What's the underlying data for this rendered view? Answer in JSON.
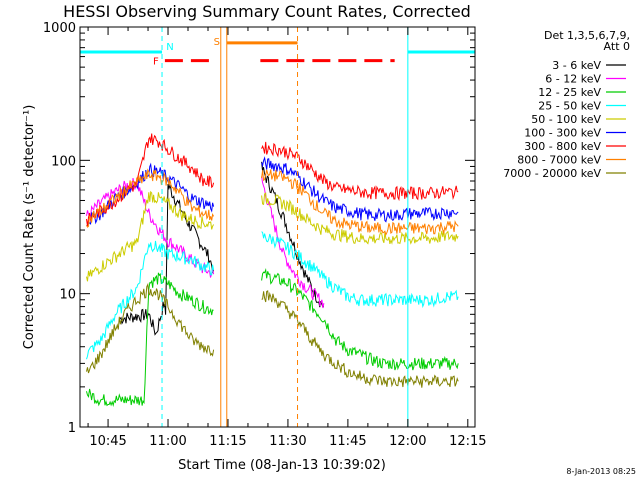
{
  "chart_data": {
    "type": "line",
    "title": "HESSI Observing Summary Count Rates, Corrected",
    "xlabel": "Start Time (08-Jan-13 10:39:02)",
    "ylabel": "Corrected Count Rate (s⁻¹ detector⁻¹)",
    "yscale": "log",
    "ylim": [
      1,
      1000
    ],
    "xlim_minutes": [
      10.633,
      12.28
    ],
    "xticks": [
      "10:45",
      "11:00",
      "11:15",
      "11:30",
      "11:45",
      "12:00",
      "12:15"
    ],
    "yticks": [
      "1",
      "10",
      "100",
      "1000"
    ],
    "legend_header": [
      "Det 1,3,5,6,7,9,",
      "Att 0"
    ],
    "legend_position": "right",
    "series": [
      {
        "name": "3 - 6 keV",
        "color": "#000000",
        "points": [
          [
            10.8,
            6.5
          ],
          [
            10.87,
            6.8
          ],
          [
            10.92,
            7.0
          ],
          [
            10.95,
            5.0
          ],
          [
            10.983,
            8.5
          ],
          [
            10.99,
            7.0
          ],
          [
            11.0,
            65
          ],
          [
            11.04,
            48
          ],
          [
            11.08,
            35
          ],
          [
            11.12,
            27
          ],
          [
            11.17,
            19
          ],
          [
            11.19,
            15
          ],
          [
            11.39,
            88
          ],
          [
            11.43,
            62
          ],
          [
            11.48,
            38
          ],
          [
            11.53,
            22
          ],
          [
            11.58,
            13
          ],
          [
            11.62,
            9.5
          ],
          [
            11.65,
            8.0
          ]
        ]
      },
      {
        "name": "6 - 12 keV",
        "color": "#ff00ff",
        "points": [
          [
            10.66,
            38
          ],
          [
            10.72,
            48
          ],
          [
            10.78,
            58
          ],
          [
            10.83,
            65
          ],
          [
            10.87,
            68
          ],
          [
            10.92,
            40
          ],
          [
            10.97,
            29
          ],
          [
            11.0,
            25
          ],
          [
            11.04,
            22
          ],
          [
            11.08,
            19
          ],
          [
            11.13,
            16
          ],
          [
            11.19,
            14
          ],
          [
            11.39,
            72
          ],
          [
            11.43,
            40
          ],
          [
            11.48,
            20
          ],
          [
            11.53,
            14
          ],
          [
            11.58,
            11
          ],
          [
            11.62,
            9.5
          ],
          [
            11.65,
            8.5
          ]
        ]
      },
      {
        "name": "12 - 25 keV",
        "color": "#00cc00",
        "points": [
          [
            10.66,
            1.8
          ],
          [
            10.72,
            1.6
          ],
          [
            10.78,
            1.6
          ],
          [
            10.83,
            1.6
          ],
          [
            10.9,
            1.6
          ],
          [
            10.92,
            12
          ],
          [
            10.96,
            13
          ],
          [
            11.0,
            12
          ],
          [
            11.05,
            10
          ],
          [
            11.1,
            9.0
          ],
          [
            11.15,
            8.0
          ],
          [
            11.19,
            7.5
          ],
          [
            11.39,
            14
          ],
          [
            11.45,
            13
          ],
          [
            11.5,
            12
          ],
          [
            11.55,
            10
          ],
          [
            11.6,
            8.0
          ],
          [
            11.65,
            6.5
          ],
          [
            11.7,
            4.5
          ],
          [
            11.75,
            3.8
          ],
          [
            11.8,
            3.5
          ],
          [
            11.85,
            3.2
          ],
          [
            11.9,
            3.0
          ],
          [
            11.95,
            3.0
          ],
          [
            12.0,
            3.0
          ],
          [
            12.05,
            3.0
          ],
          [
            12.1,
            3.0
          ],
          [
            12.15,
            3.0
          ],
          [
            12.21,
            3.0
          ]
        ]
      },
      {
        "name": "25 - 50 keV",
        "color": "#00ffff",
        "points": [
          [
            10.66,
            3.5
          ],
          [
            10.72,
            4.5
          ],
          [
            10.78,
            7.0
          ],
          [
            10.83,
            9.0
          ],
          [
            10.87,
            11
          ],
          [
            10.92,
            24
          ],
          [
            10.96,
            22
          ],
          [
            11.0,
            20
          ],
          [
            11.05,
            19
          ],
          [
            11.1,
            18
          ],
          [
            11.15,
            16
          ],
          [
            11.19,
            15
          ],
          [
            11.39,
            27
          ],
          [
            11.45,
            25
          ],
          [
            11.5,
            22
          ],
          [
            11.55,
            19
          ],
          [
            11.6,
            16
          ],
          [
            11.65,
            13
          ],
          [
            11.7,
            11
          ],
          [
            11.75,
            9.5
          ],
          [
            11.8,
            9.0
          ],
          [
            11.85,
            9.0
          ],
          [
            11.9,
            9.0
          ],
          [
            11.95,
            9.0
          ],
          [
            12.0,
            9.0
          ],
          [
            12.05,
            9.0
          ],
          [
            12.1,
            9.0
          ],
          [
            12.15,
            9.5
          ],
          [
            12.21,
            9.5
          ]
        ]
      },
      {
        "name": "50 - 100 keV",
        "color": "#cccc00",
        "points": [
          [
            10.66,
            13
          ],
          [
            10.72,
            16
          ],
          [
            10.78,
            19
          ],
          [
            10.83,
            22
          ],
          [
            10.87,
            24
          ],
          [
            10.92,
            55
          ],
          [
            10.96,
            52
          ],
          [
            11.0,
            47
          ],
          [
            11.05,
            40
          ],
          [
            11.1,
            36
          ],
          [
            11.15,
            34
          ],
          [
            11.19,
            33
          ],
          [
            11.39,
            52
          ],
          [
            11.45,
            50
          ],
          [
            11.5,
            46
          ],
          [
            11.55,
            40
          ],
          [
            11.6,
            34
          ],
          [
            11.65,
            30
          ],
          [
            11.7,
            28
          ],
          [
            11.75,
            27
          ],
          [
            11.8,
            26
          ],
          [
            11.85,
            26
          ],
          [
            11.9,
            26
          ],
          [
            11.95,
            26
          ],
          [
            12.0,
            26
          ],
          [
            12.05,
            26
          ],
          [
            12.1,
            26
          ],
          [
            12.15,
            27
          ],
          [
            12.21,
            27
          ]
        ]
      },
      {
        "name": "100 - 300 keV",
        "color": "#0000ff",
        "points": [
          [
            10.66,
            35
          ],
          [
            10.72,
            40
          ],
          [
            10.78,
            52
          ],
          [
            10.83,
            60
          ],
          [
            10.87,
            68
          ],
          [
            10.92,
            85
          ],
          [
            10.96,
            82
          ],
          [
            11.0,
            74
          ],
          [
            11.05,
            63
          ],
          [
            11.1,
            52
          ],
          [
            11.15,
            48
          ],
          [
            11.19,
            45
          ],
          [
            11.39,
            95
          ],
          [
            11.45,
            92
          ],
          [
            11.5,
            86
          ],
          [
            11.55,
            74
          ],
          [
            11.6,
            60
          ],
          [
            11.65,
            50
          ],
          [
            11.7,
            44
          ],
          [
            11.75,
            42
          ],
          [
            11.8,
            40
          ],
          [
            11.85,
            39
          ],
          [
            11.9,
            39
          ],
          [
            11.95,
            39
          ],
          [
            12.0,
            40
          ],
          [
            12.05,
            40
          ],
          [
            12.1,
            40
          ],
          [
            12.15,
            41
          ],
          [
            12.21,
            41
          ]
        ]
      },
      {
        "name": "300 - 800 keV",
        "color": "#ff0000",
        "points": [
          [
            10.66,
            35
          ],
          [
            10.72,
            42
          ],
          [
            10.78,
            50
          ],
          [
            10.83,
            60
          ],
          [
            10.87,
            66
          ],
          [
            10.92,
            148
          ],
          [
            10.96,
            140
          ],
          [
            11.0,
            122
          ],
          [
            11.05,
            103
          ],
          [
            11.1,
            88
          ],
          [
            11.15,
            70
          ],
          [
            11.19,
            68
          ],
          [
            11.39,
            125
          ],
          [
            11.45,
            122
          ],
          [
            11.5,
            115
          ],
          [
            11.55,
            103
          ],
          [
            11.6,
            85
          ],
          [
            11.65,
            70
          ],
          [
            11.7,
            62
          ],
          [
            11.75,
            60
          ],
          [
            11.8,
            58
          ],
          [
            11.85,
            57
          ],
          [
            11.9,
            57
          ],
          [
            11.95,
            57
          ],
          [
            12.0,
            57
          ],
          [
            12.05,
            57
          ],
          [
            12.1,
            57
          ],
          [
            12.15,
            58
          ],
          [
            12.21,
            58
          ]
        ]
      },
      {
        "name": "800 - 7000 keV",
        "color": "#ff8000",
        "points": [
          [
            10.66,
            35
          ],
          [
            10.72,
            42
          ],
          [
            10.78,
            52
          ],
          [
            10.83,
            62
          ],
          [
            10.87,
            68
          ],
          [
            10.92,
            78
          ],
          [
            10.96,
            76
          ],
          [
            11.0,
            70
          ],
          [
            11.05,
            57
          ],
          [
            11.1,
            44
          ],
          [
            11.15,
            40
          ],
          [
            11.19,
            38
          ],
          [
            11.39,
            78
          ],
          [
            11.45,
            77
          ],
          [
            11.5,
            72
          ],
          [
            11.55,
            62
          ],
          [
            11.6,
            50
          ],
          [
            11.65,
            40
          ],
          [
            11.7,
            35
          ],
          [
            11.75,
            33
          ],
          [
            11.8,
            32
          ],
          [
            11.85,
            31
          ],
          [
            11.9,
            31
          ],
          [
            11.95,
            31
          ],
          [
            12.0,
            31
          ],
          [
            12.05,
            31
          ],
          [
            12.1,
            31
          ],
          [
            12.15,
            32
          ],
          [
            12.21,
            32
          ]
        ]
      },
      {
        "name": "7000 - 20000 keV",
        "color": "#808000",
        "points": [
          [
            10.66,
            2.5
          ],
          [
            10.72,
            3.5
          ],
          [
            10.78,
            5.5
          ],
          [
            10.83,
            7.5
          ],
          [
            10.87,
            9.0
          ],
          [
            10.92,
            11
          ],
          [
            10.96,
            10
          ],
          [
            11.0,
            8.0
          ],
          [
            11.05,
            6.0
          ],
          [
            11.1,
            4.5
          ],
          [
            11.15,
            4.0
          ],
          [
            11.19,
            3.8
          ],
          [
            11.39,
            10
          ],
          [
            11.45,
            9.0
          ],
          [
            11.5,
            7.5
          ],
          [
            11.55,
            6.0
          ],
          [
            11.6,
            4.5
          ],
          [
            11.65,
            3.5
          ],
          [
            11.7,
            3.0
          ],
          [
            11.75,
            2.6
          ],
          [
            11.8,
            2.4
          ],
          [
            11.85,
            2.3
          ],
          [
            11.9,
            2.2
          ],
          [
            11.95,
            2.2
          ],
          [
            12.0,
            2.2
          ],
          [
            12.05,
            2.2
          ],
          [
            12.1,
            2.2
          ],
          [
            12.15,
            2.2
          ],
          [
            12.21,
            2.2
          ]
        ]
      }
    ],
    "flags": [
      {
        "label": "N",
        "color": "#00ffff",
        "level": 650,
        "ranges": [
          [
            10.633,
            10.975
          ],
          [
            12.0,
            12.28
          ]
        ]
      },
      {
        "label": "F",
        "color": "#ff0000",
        "level": 560,
        "ranges": [
          [
            10.987,
            11.18
          ],
          [
            11.385,
            11.945
          ]
        ]
      },
      {
        "label": "S",
        "color": "#ff8000",
        "level": 760,
        "ranges": [
          [
            11.245,
            11.54
          ]
        ]
      }
    ],
    "markers": [
      {
        "color": "#00ffff",
        "style": "dashed",
        "x": 10.975
      },
      {
        "color": "#ff8000",
        "style": "solid",
        "x": 11.22
      },
      {
        "color": "#ff8000",
        "style": "solid",
        "x": 11.245
      },
      {
        "color": "#ff8000",
        "style": "dashed",
        "x": 11.54
      },
      {
        "color": "#00ffff",
        "style": "solid",
        "x": 12.0
      },
      {
        "color": "#00ffff",
        "style": "dashed",
        "x": 12.28
      }
    ],
    "grid": false
  },
  "timestamp": "8-Jan-2013 08:25"
}
